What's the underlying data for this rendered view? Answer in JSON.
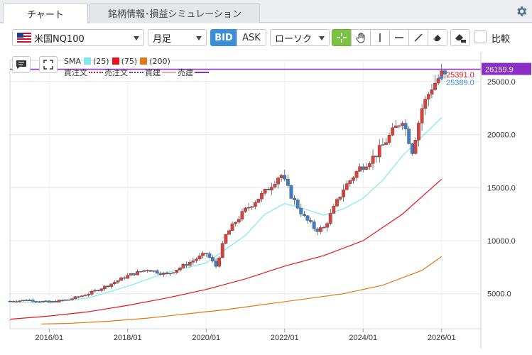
{
  "tabs": [
    {
      "label": "チャート",
      "active": true
    },
    {
      "label": "銘柄情報･損益シミュレーション",
      "active": false
    }
  ],
  "toolbar": {
    "symbol": "米国NQ100",
    "interval": "月足",
    "bid_label": "BID",
    "ask_label": "ASK",
    "chart_style": "ローソク",
    "compare_label": "比較"
  },
  "legend": {
    "sma_label": "SMA",
    "sma": [
      {
        "period": "(25)",
        "color": "#7ee8f2"
      },
      {
        "period": "(75)",
        "color": "#e8141b"
      },
      {
        "period": "(200)",
        "color": "#e07a18"
      }
    ],
    "orders": [
      {
        "label": "買注文",
        "color": "#e8141b",
        "style": "dotted"
      },
      {
        "label": "売注文",
        "color": "#3a3acb",
        "style": "dotted"
      },
      {
        "label": "買建",
        "color": "#f4a6a6",
        "style": "solid"
      },
      {
        "label": "売建",
        "color": "#8b2ec4",
        "style": "solid"
      }
    ]
  },
  "chart_data": {
    "type": "candlestick",
    "x_ticks": [
      "2016/01",
      "2018/01",
      "2020/01",
      "2022/01",
      "2024/01",
      "2026/01"
    ],
    "y_ticks": [
      "5000.0",
      "10000.0",
      "15000.0",
      "20000.0",
      "25000.0"
    ],
    "ylim": [
      1700,
      27000
    ],
    "horizontal_line": {
      "value": 26159.9,
      "label": "26159.9",
      "color": "#8b2ec4"
    },
    "price_labels": [
      {
        "value": 25391.0,
        "label": "25391.0",
        "color": "#e8141b"
      },
      {
        "value": 25389.0,
        "label": "25389.0",
        "color": "#3a8fd6"
      }
    ],
    "candles": [],
    "sma_series": [
      {
        "name": "(25)",
        "color": "#7ee8f2",
        "points": [
          [
            2015.0,
            4250
          ],
          [
            2016.0,
            4150
          ],
          [
            2017.0,
            4600
          ],
          [
            2018.0,
            5700
          ],
          [
            2019.0,
            7000
          ],
          [
            2020.0,
            7900
          ],
          [
            2021.0,
            10500
          ],
          [
            2021.5,
            12500
          ],
          [
            2022.0,
            13500
          ],
          [
            2022.5,
            13000
          ],
          [
            2023.0,
            12400
          ],
          [
            2023.5,
            13000
          ],
          [
            2024.0,
            14000
          ],
          [
            2024.5,
            15700
          ],
          [
            2025.0,
            18000
          ],
          [
            2025.5,
            19800
          ],
          [
            2026.0,
            21600
          ]
        ]
      },
      {
        "name": "(75)",
        "color": "#e8141b",
        "points": [
          [
            2015.0,
            2600
          ],
          [
            2016.0,
            2900
          ],
          [
            2017.0,
            3300
          ],
          [
            2018.0,
            3900
          ],
          [
            2019.0,
            4600
          ],
          [
            2020.0,
            5400
          ],
          [
            2021.0,
            6400
          ],
          [
            2022.0,
            7600
          ],
          [
            2023.0,
            8600
          ],
          [
            2024.0,
            10000
          ],
          [
            2025.0,
            12500
          ],
          [
            2026.0,
            15800
          ]
        ]
      },
      {
        "name": "(200)",
        "color": "#e07a18",
        "points": [
          [
            2015.8,
            2150
          ],
          [
            2016.5,
            2200
          ],
          [
            2017.5,
            2400
          ],
          [
            2018.5,
            2700
          ],
          [
            2019.5,
            3100
          ],
          [
            2020.5,
            3500
          ],
          [
            2021.5,
            4000
          ],
          [
            2022.5,
            4500
          ],
          [
            2023.5,
            5000
          ],
          [
            2024.5,
            5800
          ],
          [
            2025.5,
            7200
          ],
          [
            2026.0,
            8500
          ]
        ]
      }
    ]
  }
}
